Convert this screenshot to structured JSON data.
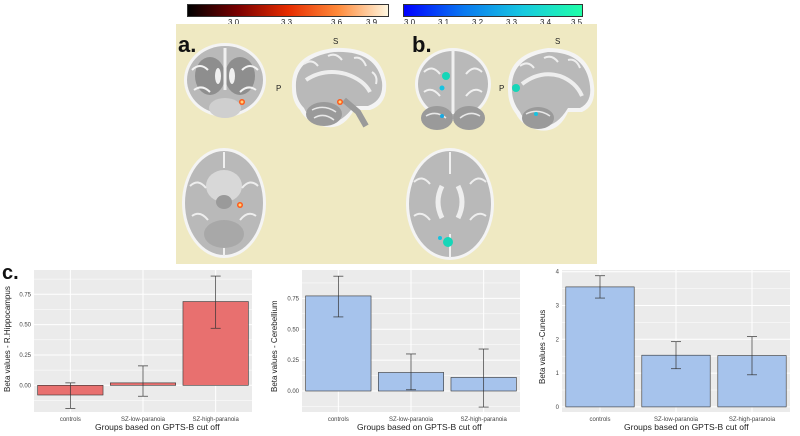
{
  "figure": {
    "panel_a_label": "a.",
    "panel_b_label": "b.",
    "panel_c_label": "c.",
    "orient_S_1": "S",
    "orient_P_1": "P",
    "orient_S_2": "S",
    "orient_P_2": "P"
  },
  "colorbars": {
    "hot": {
      "ticks": [
        "3.0",
        "3.3",
        "3.6",
        "3.9"
      ],
      "colors": [
        "#000000",
        "#7a0000",
        "#e62c00",
        "#ff8a3a",
        "#fff7e0"
      ]
    },
    "cool": {
      "ticks": [
        "3.0",
        "3.1",
        "3.2",
        "3.3",
        "3.4",
        "3.5"
      ],
      "colors": [
        "#0000ff",
        "#0a78f0",
        "#17c8e0",
        "#20ffa8"
      ]
    }
  },
  "chart_data": [
    {
      "type": "bar",
      "categories": [
        "controls",
        "SZ-low-paranoia",
        "SZ-high-paranoia"
      ],
      "values": [
        -0.08,
        0.02,
        0.69
      ],
      "error_low": [
        -0.19,
        -0.09,
        0.47
      ],
      "error_high": [
        0.02,
        0.16,
        0.9
      ],
      "xlabel": "Groups based on GPTS-B cut off",
      "ylabel": "Beta values - R.Hippocampus",
      "ylim": [
        -0.22,
        0.95
      ],
      "yticks": [
        "0.75",
        "0.50",
        "0.25",
        "0.00"
      ],
      "color": "#e8706f"
    },
    {
      "type": "bar",
      "categories": [
        "controls",
        "SZ-low-paranoia",
        "SZ-high-paranoia"
      ],
      "values": [
        0.77,
        0.15,
        0.11
      ],
      "error_low": [
        0.6,
        0.01,
        -0.13
      ],
      "error_high": [
        0.93,
        0.3,
        0.34
      ],
      "xlabel": "Groups based on GPTS-B cut off",
      "ylabel": "Beta values - Cerebellium",
      "ylim": [
        -0.17,
        0.98
      ],
      "yticks": [
        "0.75",
        "0.50",
        "0.25",
        "0.00"
      ],
      "color": "#a6c3ec"
    },
    {
      "type": "bar",
      "categories": [
        "controls",
        "SZ-low-paranoia",
        "SZ-high-paranoia"
      ],
      "values": [
        3.55,
        1.53,
        1.52
      ],
      "error_low": [
        3.22,
        1.13,
        0.95
      ],
      "error_high": [
        3.88,
        1.93,
        2.08
      ],
      "xlabel": "Groups based on GPTS-B cut off",
      "ylabel": "Beta values -Cuneus",
      "ylim": [
        -0.15,
        4.05
      ],
      "yticks": [
        "4",
        "3",
        "2",
        "1",
        "0"
      ],
      "color": "#a6c3ec"
    }
  ]
}
